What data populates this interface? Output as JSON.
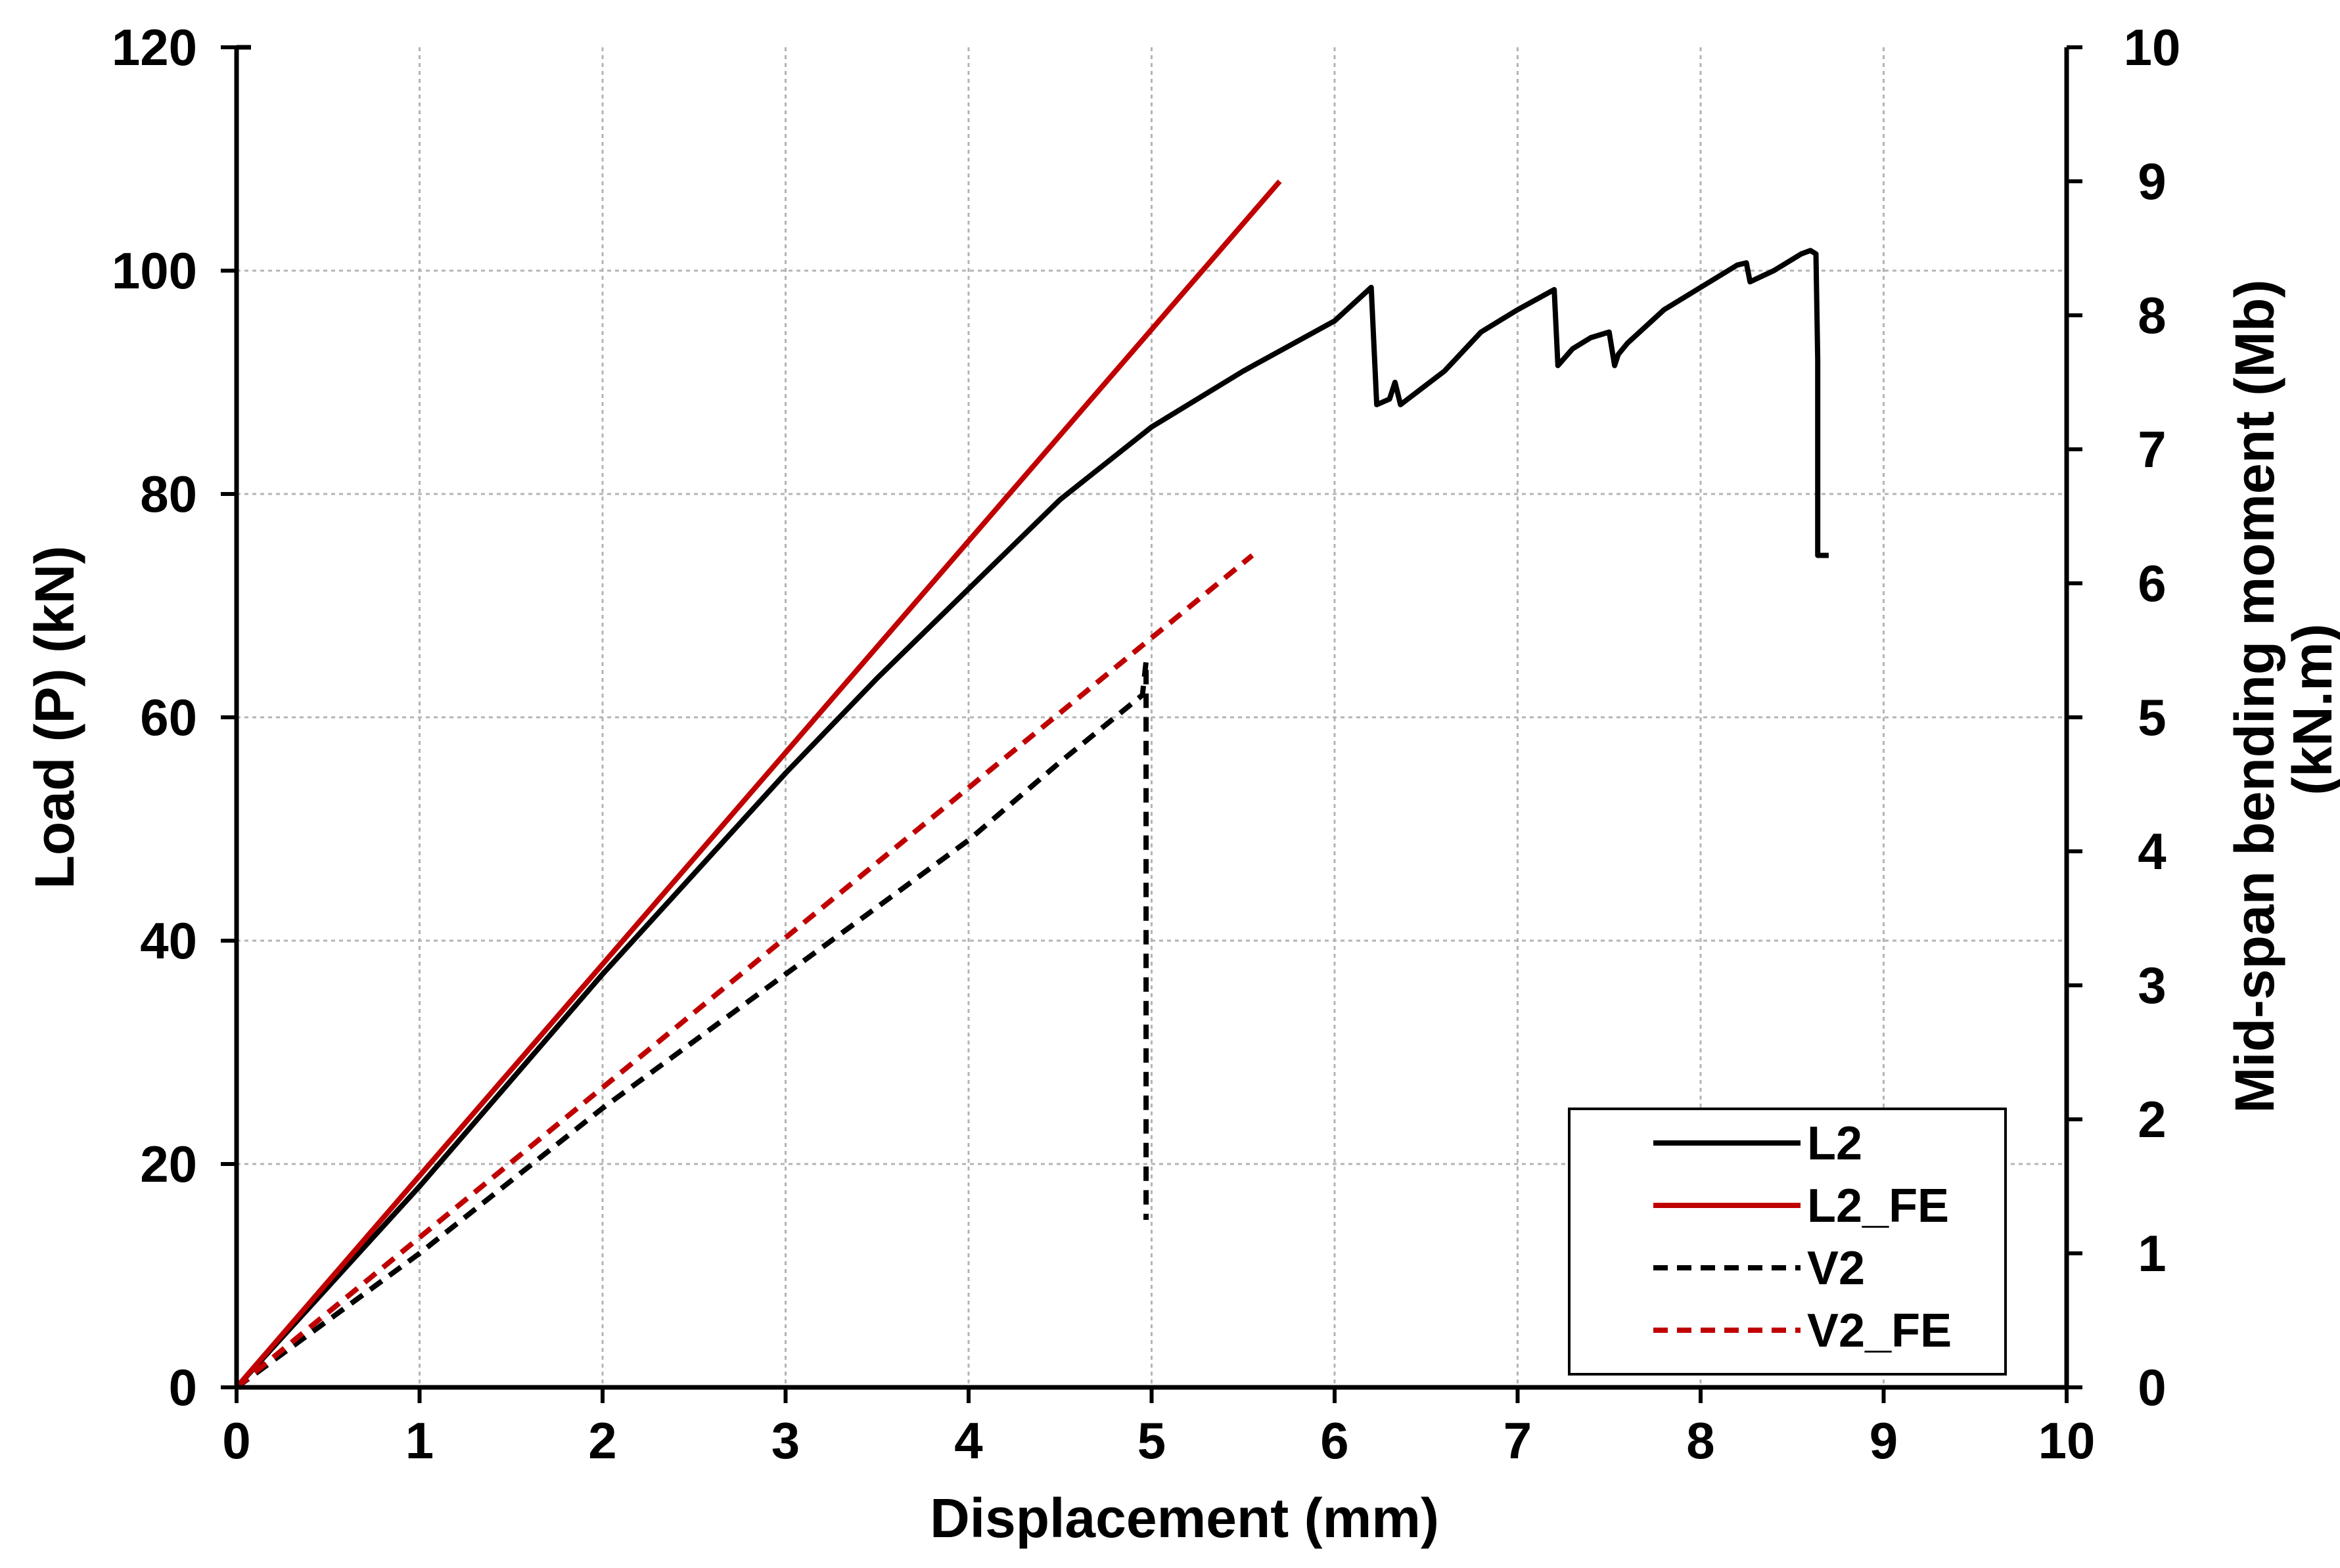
{
  "chart_data": {
    "type": "line",
    "xlabel": "Displacement (mm)",
    "ylabel": "Load (P) (kN)",
    "y2label_line1": "Mid-span bending moment (Mb)",
    "y2label_line2": "(kN.m)",
    "xlim": [
      0,
      10
    ],
    "ylim": [
      0,
      120
    ],
    "y2lim": [
      0,
      10
    ],
    "xticks": [
      0,
      1,
      2,
      3,
      4,
      5,
      6,
      7,
      8,
      9,
      10
    ],
    "yticks": [
      0,
      20,
      40,
      60,
      80,
      100,
      120
    ],
    "y2ticks": [
      0,
      1,
      2,
      3,
      4,
      5,
      6,
      7,
      8,
      9,
      10
    ],
    "grid": true,
    "legend_position": "bottom-right",
    "series": [
      {
        "name": "L2",
        "color": "#000000",
        "dash": "solid",
        "x": [
          0,
          0.5,
          1.0,
          1.5,
          2.0,
          2.5,
          3.0,
          3.5,
          4.0,
          4.5,
          5.0,
          5.5,
          6.0,
          6.2,
          6.23,
          6.3,
          6.33,
          6.36,
          6.4,
          6.6,
          6.8,
          7.0,
          7.2,
          7.22,
          7.3,
          7.4,
          7.5,
          7.53,
          7.55,
          7.6,
          7.8,
          8.0,
          8.2,
          8.25,
          8.27,
          8.4,
          8.55,
          8.6,
          8.63,
          8.64,
          8.64,
          8.7
        ],
        "y": [
          0,
          9,
          18,
          27.5,
          37,
          46,
          55,
          63.5,
          71.5,
          79.5,
          86,
          91,
          95.5,
          98.5,
          88,
          88.5,
          90,
          88,
          88.5,
          91,
          94.5,
          96.5,
          98.3,
          91.5,
          93,
          94,
          94.5,
          91.5,
          92.5,
          93.5,
          96.5,
          98.5,
          100.5,
          100.7,
          99,
          100,
          101.5,
          101.8,
          101.5,
          92,
          74.5,
          74.5
        ]
      },
      {
        "name": "L2_FE",
        "color": "#c00000",
        "dash": "solid",
        "x": [
          0,
          5.7
        ],
        "y": [
          0,
          108
        ]
      },
      {
        "name": "V2",
        "color": "#000000",
        "dash": "dashed",
        "x": [
          0,
          1.0,
          2.0,
          3.0,
          4.0,
          4.5,
          4.95,
          4.97,
          4.97
        ],
        "y": [
          0,
          12,
          25,
          37,
          49,
          56,
          62,
          65,
          15
        ]
      },
      {
        "name": "V2_FE",
        "color": "#c00000",
        "dash": "dashed",
        "x": [
          0,
          5.55
        ],
        "y": [
          0,
          74.5
        ]
      }
    ]
  }
}
